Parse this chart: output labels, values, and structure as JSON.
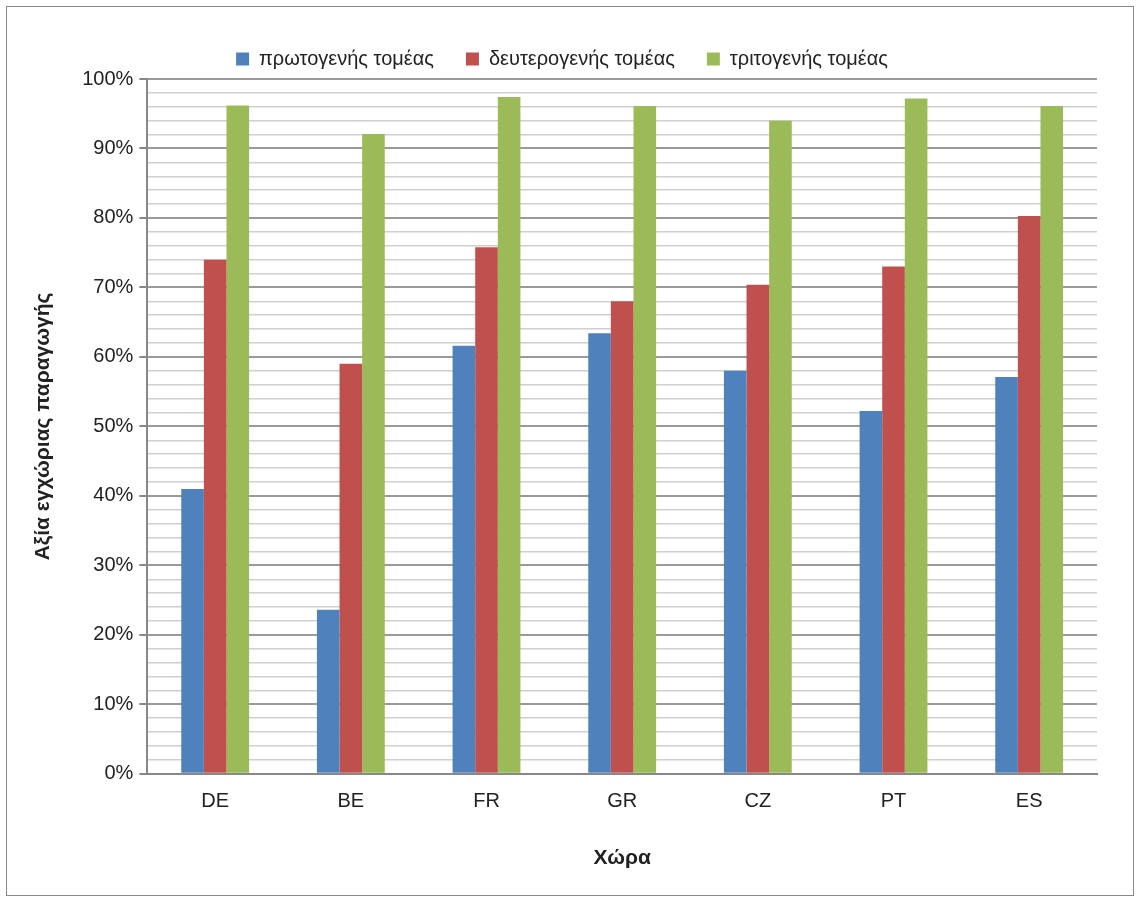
{
  "chart_data": {
    "type": "bar",
    "xlabel": "Χώρα",
    "ylabel": "Αξία εγχώριας παραγωγής",
    "categories": [
      "DE",
      "BE",
      "FR",
      "GR",
      "CZ",
      "PT",
      "ES"
    ],
    "series": [
      {
        "name": "πρωτογενής τομέας",
        "color": "#4f81bd",
        "values": [
          41,
          23.6,
          61.6,
          63.4,
          58,
          52.2,
          57.1
        ]
      },
      {
        "name": "δευτερογενής τομέας",
        "color": "#c0504d",
        "values": [
          74,
          59,
          75.8,
          68,
          70.4,
          73,
          80.3
        ]
      },
      {
        "name": "τριτογενής τομέας",
        "color": "#9bbb59",
        "values": [
          96.2,
          92.1,
          97.4,
          96.1,
          94,
          97.2,
          96.1
        ]
      }
    ],
    "ylim": [
      0,
      100
    ],
    "yticks": [
      {
        "value": 0,
        "label": "0%"
      },
      {
        "value": 2,
        "label": null
      },
      {
        "value": 4,
        "label": null
      },
      {
        "value": 6,
        "label": null
      },
      {
        "value": 8,
        "label": null
      },
      {
        "value": 10,
        "label": "10%"
      },
      {
        "value": 12,
        "label": null
      },
      {
        "value": 14,
        "label": null
      },
      {
        "value": 16,
        "label": null
      },
      {
        "value": 18,
        "label": null
      },
      {
        "value": 20,
        "label": "20%"
      },
      {
        "value": 22,
        "label": null
      },
      {
        "value": 24,
        "label": null
      },
      {
        "value": 26,
        "label": null
      },
      {
        "value": 28,
        "label": null
      },
      {
        "value": 30,
        "label": "30%"
      },
      {
        "value": 32,
        "label": null
      },
      {
        "value": 34,
        "label": null
      },
      {
        "value": 36,
        "label": null
      },
      {
        "value": 38,
        "label": null
      },
      {
        "value": 40,
        "label": "40%"
      },
      {
        "value": 42,
        "label": null
      },
      {
        "value": 44,
        "label": null
      },
      {
        "value": 46,
        "label": null
      },
      {
        "value": 48,
        "label": null
      },
      {
        "value": 50,
        "label": "50%"
      },
      {
        "value": 52,
        "label": null
      },
      {
        "value": 54,
        "label": null
      },
      {
        "value": 56,
        "label": null
      },
      {
        "value": 58,
        "label": null
      },
      {
        "value": 60,
        "label": "60%"
      },
      {
        "value": 62,
        "label": null
      },
      {
        "value": 64,
        "label": null
      },
      {
        "value": 66,
        "label": null
      },
      {
        "value": 68,
        "label": null
      },
      {
        "value": 70,
        "label": "70%"
      },
      {
        "value": 72,
        "label": null
      },
      {
        "value": 74,
        "label": null
      },
      {
        "value": 76,
        "label": null
      },
      {
        "value": 78,
        "label": null
      },
      {
        "value": 80,
        "label": "80%"
      },
      {
        "value": 82,
        "label": null
      },
      {
        "value": 84,
        "label": null
      },
      {
        "value": 86,
        "label": null
      },
      {
        "value": 88,
        "label": null
      },
      {
        "value": 90,
        "label": "90%"
      },
      {
        "value": 92,
        "label": null
      },
      {
        "value": 94,
        "label": null
      },
      {
        "value": 96,
        "label": null
      },
      {
        "value": 98,
        "label": null
      },
      {
        "value": 100,
        "label": "100%"
      }
    ],
    "grid": "y",
    "legend": "top"
  }
}
